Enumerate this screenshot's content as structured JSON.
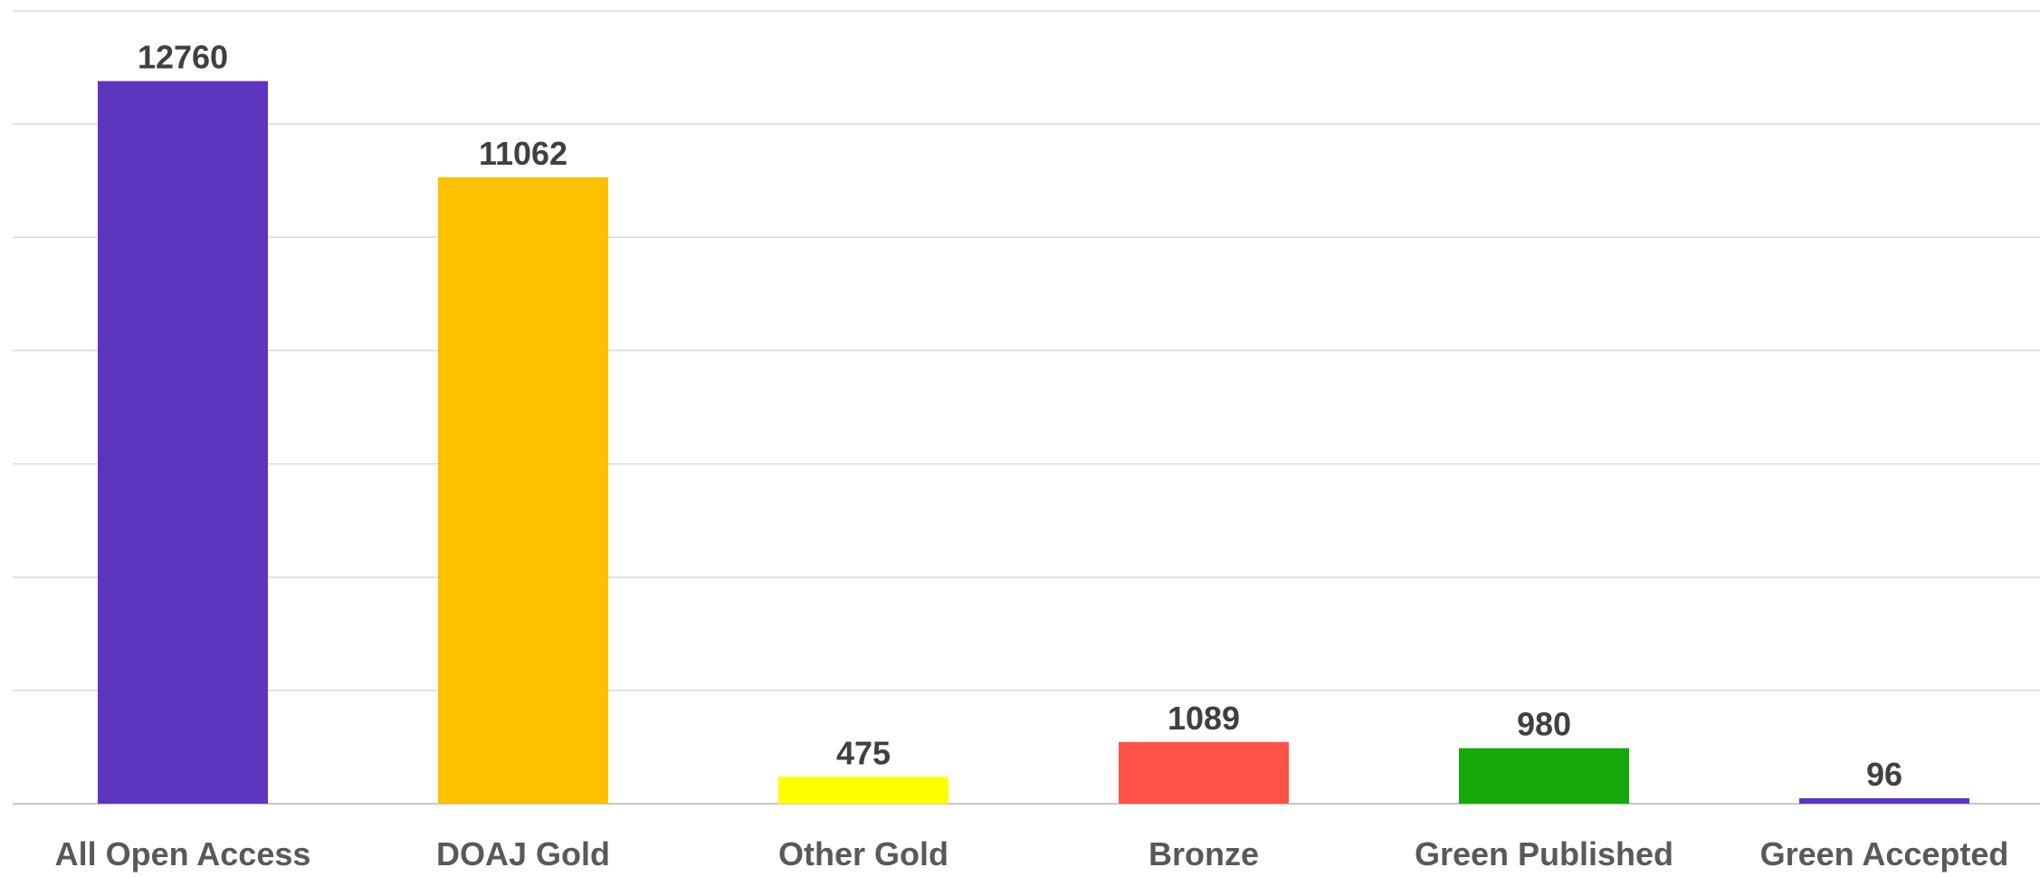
{
  "chart_data": {
    "type": "bar",
    "title": "",
    "xlabel": "",
    "ylabel": "",
    "categories": [
      "All Open Access",
      "DOAJ Gold",
      "Other Gold",
      "Bronze",
      "Green Published",
      "Green Accepted"
    ],
    "values": [
      12760,
      11062,
      475,
      1089,
      980,
      96
    ],
    "colors": [
      "#5E35BF",
      "#FFC000",
      "#FFFF00",
      "#FF5246",
      "#14A808",
      "#5E35BF"
    ],
    "ylim": [
      0,
      14000
    ],
    "grid": true,
    "y_tick_labels_visible": false,
    "legend": "none"
  }
}
